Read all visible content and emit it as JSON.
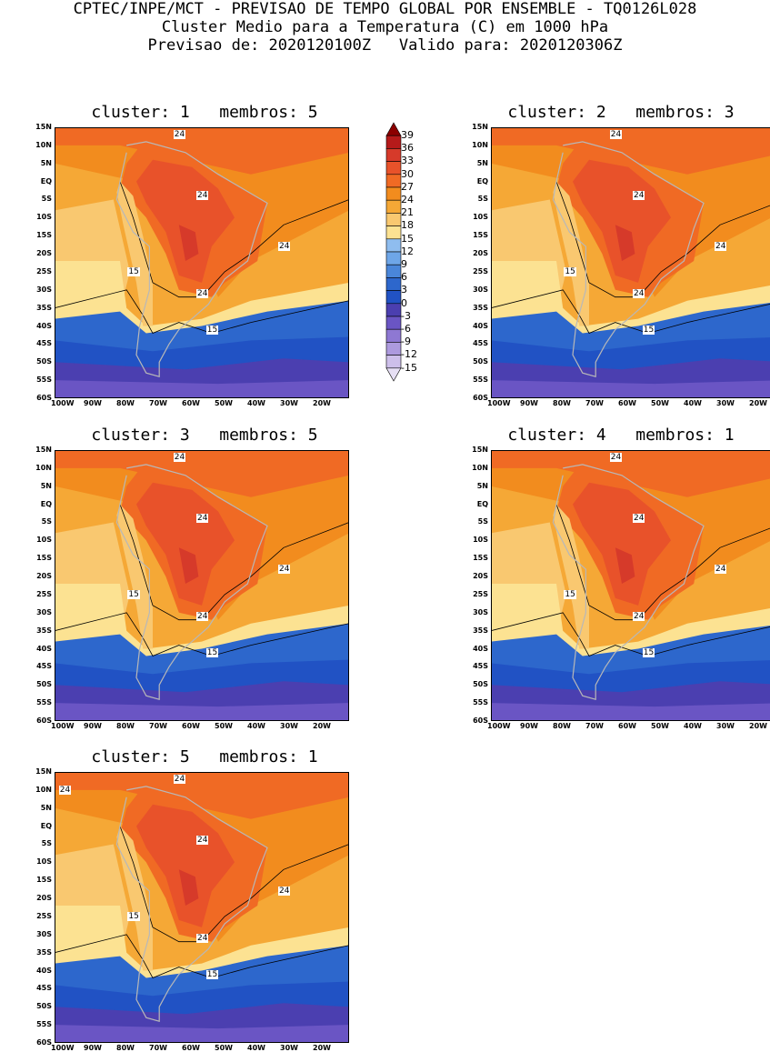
{
  "header": {
    "line1": "CPTEC/INPE/MCT - PREVISAO DE TEMPO GLOBAL POR ENSEMBLE - TQ0126L028",
    "line2": "Cluster Medio para a Temperatura (C) em 1000 hPa",
    "line3": "Previsao de: 2020120100Z   Valido para: 2020120306Z"
  },
  "lat_labels": [
    "15N",
    "10N",
    "5N",
    "EQ",
    "5S",
    "10S",
    "15S",
    "20S",
    "25S",
    "30S",
    "35S",
    "40S",
    "45S",
    "50S",
    "55S",
    "60S"
  ],
  "lon_labels": [
    "100W",
    "90W",
    "80W",
    "70W",
    "60W",
    "50W",
    "40W",
    "30W",
    "20W"
  ],
  "panels": [
    {
      "title": "cluster: 1   membros: 5",
      "contour_labels": [
        "24",
        "24",
        "24",
        "24",
        "15",
        "15"
      ]
    },
    {
      "title": "cluster: 2   membros: 3",
      "contour_labels": [
        "24",
        "24",
        "24",
        "24",
        "15",
        "15"
      ]
    },
    {
      "title": "cluster: 3   membros: 5",
      "contour_labels": [
        "24",
        "24",
        "24",
        "24",
        "15",
        "15"
      ]
    },
    {
      "title": "cluster: 4   membros: 1",
      "contour_labels": [
        "24",
        "24",
        "24",
        "24",
        "15",
        "15"
      ]
    },
    {
      "title": "cluster: 5   membros: 1",
      "contour_labels": [
        "24",
        "24",
        "24",
        "24",
        "24",
        "15",
        "15"
      ]
    }
  ],
  "colorbar": {
    "labels": [
      "39",
      "36",
      "33",
      "30",
      "27",
      "24",
      "21",
      "18",
      "15",
      "12",
      "9",
      "6",
      "3",
      "0",
      "-3",
      "-6",
      "-9",
      "-12",
      "-15"
    ],
    "colors": [
      "#8b0000",
      "#b51a1a",
      "#d63a2a",
      "#e8522a",
      "#f06a24",
      "#f28c1e",
      "#f5a836",
      "#f9c870",
      "#fce292",
      "#8fbdef",
      "#6ea6e8",
      "#4a86d9",
      "#2d67cc",
      "#2152c4",
      "#4b3fb0",
      "#6a55c4",
      "#8e78d3",
      "#ad9ade",
      "#cdbfea",
      "#e6dff4"
    ]
  }
}
